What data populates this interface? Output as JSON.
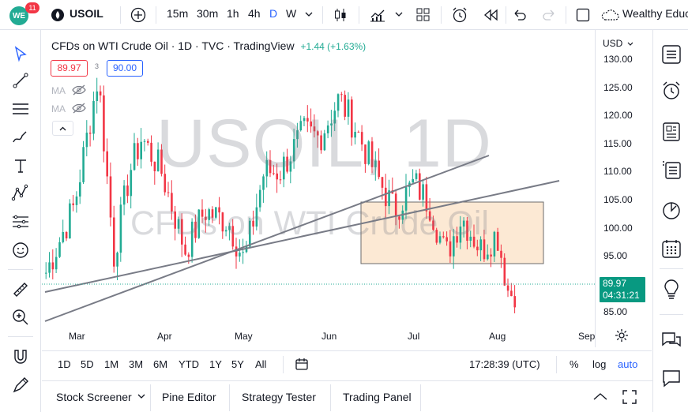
{
  "topbar": {
    "avatar_text": "WE",
    "notification_count": "11",
    "symbol": "USOIL",
    "intervals": [
      "15m",
      "30m",
      "1h",
      "4h",
      "D",
      "W"
    ],
    "active_interval": "D",
    "account_name": "Wealthy Educ"
  },
  "legend": {
    "title": "CFDs on WTI Crude Oil · 1D · TVC · TradingView",
    "change": "+1.44 (+1.63%)",
    "sell_price": "89.97",
    "spread": "3",
    "buy_price": "90.00",
    "ma_labels": [
      "MA",
      "MA"
    ]
  },
  "watermark": {
    "main": "USOIL, 1D",
    "sub": "CFDs on WTI Crude Oil"
  },
  "price_axis": {
    "currency": "USD",
    "ticks": [
      "130.00",
      "125.00",
      "120.00",
      "115.00",
      "110.00",
      "105.00",
      "100.00",
      "95.00",
      "90.00",
      "85.00"
    ],
    "last_price": "89.97",
    "countdown": "04:31:21"
  },
  "time_axis": {
    "labels": [
      "Mar",
      "Apr",
      "May",
      "Jun",
      "Jul",
      "Aug",
      "Sep"
    ]
  },
  "range_bar": {
    "ranges": [
      "1D",
      "5D",
      "1M",
      "3M",
      "6M",
      "YTD",
      "1Y",
      "5Y",
      "All"
    ],
    "clock": "17:28:39 (UTC)",
    "percent": "%",
    "log": "log",
    "auto": "auto"
  },
  "bottom_panel": {
    "tabs": [
      "Stock Screener",
      "Pine Editor",
      "Strategy Tester",
      "Trading Panel"
    ]
  },
  "colors": {
    "up": "#22ab94",
    "down": "#f23645",
    "accent": "#2962ff",
    "zone_fill": "#fce9d4"
  }
}
